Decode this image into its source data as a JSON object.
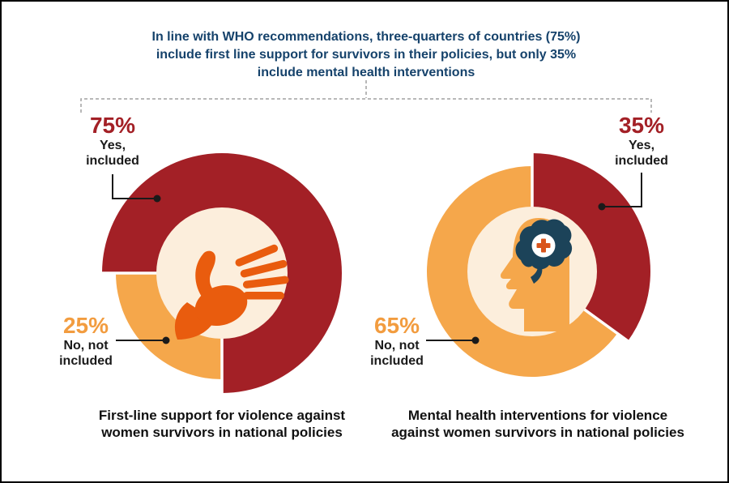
{
  "header": {
    "title_lines": [
      "In line with WHO recommendations, three-quarters of countries (75%)",
      "include first line support for survivors in their policies, but only 35%",
      "include mental health interventions"
    ]
  },
  "colors": {
    "dark_red": "#A32026",
    "orange_segment": "#F5A74B",
    "orange_label": "#F29C3F",
    "cream_inner": "#FCEEDC",
    "hand_orange": "#E95C0E",
    "title_navy": "#15426B",
    "brain_navy": "#1C4359",
    "cross_orange": "#D9551C",
    "text_black": "#1A1A1A"
  },
  "charts": {
    "left": {
      "caption_lines": [
        "First-line support for violence against",
        "women survivors in national policies"
      ],
      "yes": {
        "pct": "75%",
        "line1": "Yes,",
        "line2": "included"
      },
      "no": {
        "pct": "25%",
        "line1": "No, not",
        "line2": "included"
      },
      "center_icon": "open-hand-icon"
    },
    "right": {
      "caption_lines": [
        "Mental health interventions for violence",
        "against women survivors in national policies"
      ],
      "yes": {
        "pct": "35%",
        "line1": "Yes,",
        "line2": "included"
      },
      "no": {
        "pct": "65%",
        "line1": "No, not",
        "line2": "included"
      },
      "center_icon": "head-brain-cross-icon"
    }
  },
  "chart_data": [
    {
      "type": "pie",
      "title": "First-line support for violence against women survivors in national policies",
      "labels": [
        "Yes, included",
        "No, not included"
      ],
      "values": [
        75,
        25
      ],
      "colors": [
        "#A32026",
        "#F5A74B"
      ],
      "start_angle_deg": 270,
      "donut": true,
      "emphasized_segment": "Yes, included"
    },
    {
      "type": "pie",
      "title": "Mental health interventions for violence against women survivors in national policies",
      "labels": [
        "Yes, included",
        "No, not included"
      ],
      "values": [
        35,
        65
      ],
      "colors": [
        "#A32026",
        "#F5A74B"
      ],
      "start_angle_deg": 0,
      "donut": true,
      "emphasized_segment": "Yes, included"
    }
  ]
}
